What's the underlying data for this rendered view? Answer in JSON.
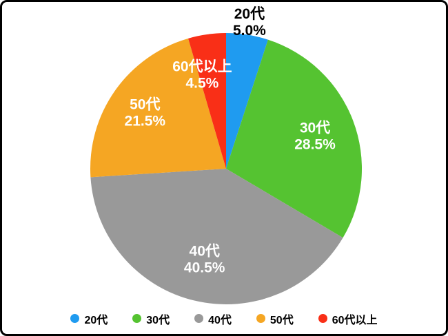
{
  "chart_data": {
    "type": "pie",
    "title": "",
    "start_angle": "top",
    "direction": "clockwise",
    "legend_position": "bottom",
    "background_color": "#ffffff",
    "border_color": "#000000",
    "slices": [
      {
        "label": "20代",
        "value": 5.0,
        "display": "5.0%",
        "color": "#1F9BF0",
        "label_color": "#000000",
        "label_radius": 1.1,
        "label_angle_offset": 0
      },
      {
        "label": "30代",
        "value": 28.5,
        "display": "28.5%",
        "color": "#55C331",
        "label_color": "#ffffff",
        "label_radius": 0.7,
        "label_angle_offset": 0
      },
      {
        "label": "40代",
        "value": 40.5,
        "display": "40.5%",
        "color": "#999999",
        "label_color": "#ffffff",
        "label_radius": 0.68,
        "label_angle_offset": 0
      },
      {
        "label": "50代",
        "value": 21.5,
        "display": "21.5%",
        "color": "#F5A623",
        "label_color": "#ffffff",
        "label_radius": 0.73,
        "label_angle_offset": 0
      },
      {
        "label": "60代以上",
        "value": 4.5,
        "display": "4.5%",
        "color": "#F92F17",
        "label_color": "#ffffff",
        "label_radius": 0.72,
        "label_angle_offset": -6
      }
    ]
  }
}
